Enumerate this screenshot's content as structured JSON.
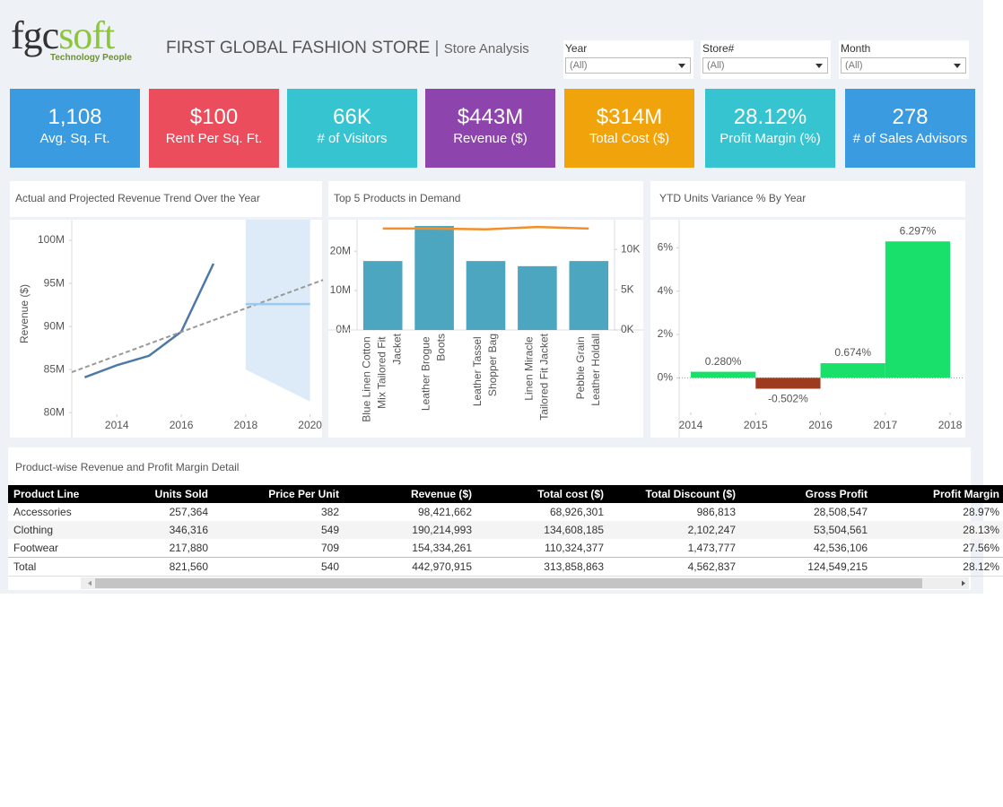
{
  "header": {
    "logo_main": "fgc",
    "logo_accent": "soft",
    "tagline": "Technology People",
    "title": "FIRST GLOBAL FASHION STORE",
    "separator": "|",
    "subtitle": "Store Analysis"
  },
  "filters": [
    {
      "label": "Year",
      "value": "(All)"
    },
    {
      "label": "Store#",
      "value": "(All)"
    },
    {
      "label": "Month",
      "value": "(All)"
    }
  ],
  "kpis": [
    {
      "value": "1,108",
      "label": "Avg. Sq. Ft.",
      "color": "#3a9be0"
    },
    {
      "value": "$100",
      "label": "Rent Per Sq. Ft.",
      "color": "#eb4d5c"
    },
    {
      "value": "66K",
      "label": "# of Visitors",
      "color": "#35c4d0"
    },
    {
      "value": "$443M",
      "label": "Revenue ($)",
      "color": "#8e44ad"
    },
    {
      "value": "$314M",
      "label": "Total Cost ($)",
      "color": "#f0a30a"
    },
    {
      "value": "28.12%",
      "label": "Profit Margin (%)",
      "color": "#35c4d0"
    },
    {
      "value": "278",
      "label": "# of Sales Advisors",
      "color": "#3a9be0"
    }
  ],
  "chart_data": [
    {
      "type": "line",
      "title": "Actual and Projected Revenue Trend Over the Year",
      "ylabel": "Revenue ($)",
      "xlim": [
        2012.6,
        2020.4
      ],
      "xticks": [
        2014,
        2016,
        2018,
        2020
      ],
      "ylim": [
        79.5,
        102.4
      ],
      "yticks": [
        {
          "value": 80,
          "label": "80M"
        },
        {
          "value": 85,
          "label": "85M"
        },
        {
          "value": 90,
          "label": "90M"
        },
        {
          "value": 95,
          "label": "95M"
        },
        {
          "value": 100,
          "label": "100M"
        }
      ],
      "band": {
        "x": [
          2018,
          2020
        ],
        "upper": [
          102.4,
          102.4
        ],
        "lower": [
          85,
          81.3
        ],
        "color": "#dcebf7"
      },
      "series": [
        {
          "x": [
            2013,
            2014,
            2015,
            2016,
            2017
          ],
          "values": [
            84.1,
            85.5,
            86.6,
            89.4,
            97.3
          ],
          "color": "#4e79a7"
        },
        {
          "x": [
            2012.6,
            2020.4
          ],
          "values": [
            84.7,
            95.4
          ],
          "color": "#999999",
          "dashed": true
        },
        {
          "x": [
            2018,
            2020
          ],
          "values": [
            92.6,
            92.6
          ],
          "color": "#9ec9ee"
        }
      ]
    },
    {
      "type": "bar",
      "title": "Top 5 Products in Demand",
      "categories": [
        "Blue Linen Cotton Mix Tailored Fit Jacket",
        "Leather Brogue Boots",
        "Leather Tassel Shopper Bag",
        "Linen Miracle Tailored Fit Jacket",
        "Pebble Grain Leather Holdall"
      ],
      "ylim": [
        0,
        28
      ],
      "yticks": [
        {
          "value": 0,
          "label": "0M"
        },
        {
          "value": 10,
          "label": "10M"
        },
        {
          "value": 20,
          "label": "20M"
        }
      ],
      "y2lim": [
        0,
        13.7
      ],
      "y2ticks": [
        {
          "value": 0,
          "label": "0K"
        },
        {
          "value": 5,
          "label": "5K"
        },
        {
          "value": 10,
          "label": "10K"
        }
      ],
      "series": [
        {
          "values": [
            17.5,
            26.4,
            17.5,
            16.2,
            17.5
          ],
          "color": "#4da6bf"
        },
        {
          "type": "line",
          "axis": "y2",
          "values": [
            12.6,
            12.6,
            12.5,
            12.8,
            12.6
          ],
          "color": "#f28e2b"
        }
      ]
    },
    {
      "type": "bar",
      "title": "YTD Units Variance % By Year",
      "x": [
        2014,
        2015,
        2016,
        2017
      ],
      "values": [
        0.28,
        -0.502,
        0.674,
        6.297
      ],
      "value_labels": [
        "0.280%",
        "-0.502%",
        "0.674%",
        "6.297%"
      ],
      "color": "#19e06a",
      "negative_color": "#9e3a1e",
      "xlim": [
        2013.82,
        2018.22
      ],
      "xticks": [
        2014,
        2015,
        2016,
        2017,
        2018
      ],
      "ylim": [
        -1.6,
        7.3
      ],
      "yticks": [
        {
          "value": 0,
          "label": "0%"
        },
        {
          "value": 2,
          "label": "2%"
        },
        {
          "value": 4,
          "label": "4%"
        },
        {
          "value": 6,
          "label": "6%"
        }
      ]
    }
  ],
  "table": {
    "title": "Product-wise Revenue and Profit Margin Detail",
    "columns": [
      "Product Line",
      "Units Sold",
      "Price Per Unit",
      "Revenue ($)",
      "Total cost ($)",
      "Total Discount ($)",
      "Gross Profit",
      "Profit Margin"
    ],
    "rows": [
      [
        "Accessories",
        "257,364",
        "382",
        "98,421,662",
        "68,926,301",
        "986,813",
        "28,508,547",
        "28.97%"
      ],
      [
        "Clothing",
        "346,316",
        "549",
        "190,214,993",
        "134,608,185",
        "2,102,247",
        "53,504,561",
        "28.13%"
      ],
      [
        "Footwear",
        "217,880",
        "709",
        "154,334,261",
        "110,324,377",
        "1,473,777",
        "42,536,106",
        "27.56%"
      ]
    ],
    "total": [
      "Total",
      "821,560",
      "540",
      "442,970,915",
      "313,858,863",
      "4,562,837",
      "124,549,215",
      "28.12%"
    ]
  }
}
